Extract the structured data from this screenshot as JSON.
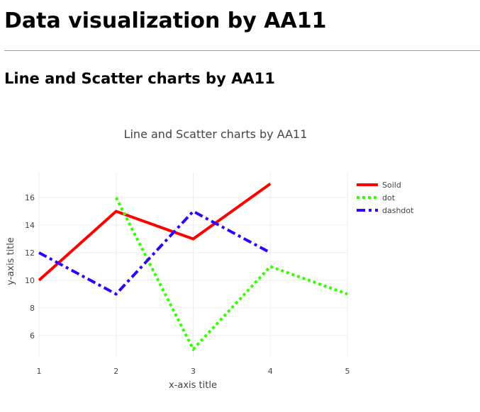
{
  "page": {
    "heading": "Data visualization by AA11",
    "section_heading": "Line and Scatter charts by AA11"
  },
  "chart_data": {
    "type": "line",
    "title": "Line and Scatter charts by AA11",
    "xlabel": "x-axis title",
    "ylabel": "y-axis title",
    "xlim": [
      1,
      5
    ],
    "ylim": [
      4.4,
      17.8
    ],
    "xticks": [
      1,
      2,
      3,
      4,
      5
    ],
    "yticks": [
      6,
      8,
      10,
      12,
      14,
      16
    ],
    "grid": true,
    "legend_position": "top-right",
    "series": [
      {
        "name": "Soild",
        "dash": "solid",
        "color": "#ff0000",
        "x": [
          1,
          2,
          3,
          4
        ],
        "y": [
          10,
          15,
          13,
          17
        ]
      },
      {
        "name": "dot",
        "dash": "dot",
        "color": "#33ff00",
        "x": [
          2,
          3,
          4,
          5
        ],
        "y": [
          16,
          5,
          11,
          9
        ]
      },
      {
        "name": "dashdot",
        "dash": "dashdot",
        "color": "#3300ff",
        "x": [
          1,
          2,
          3,
          4
        ],
        "y": [
          12,
          9,
          15,
          12
        ]
      }
    ]
  }
}
